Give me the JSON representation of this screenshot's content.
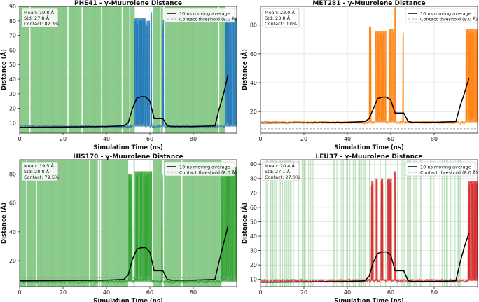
{
  "figure": {
    "common_xlabel": "Simulation Time (ns)",
    "common_ylabel": "Distance (Å)"
  },
  "chart_data": [
    {
      "type": "line",
      "title": "PHE41 - γ-Muurolene Distance",
      "xlabel": "Simulation Time (ns)",
      "ylabel": "Distance (Å)",
      "xlim": [
        0,
        100
      ],
      "ylim": [
        3,
        90
      ],
      "xticks": [
        0,
        20,
        40,
        60,
        80
      ],
      "yticks": [
        10,
        20,
        30,
        40,
        50,
        60,
        70,
        80,
        90
      ],
      "line_color": "#1f77b4",
      "shade_color": "#2ca02c",
      "contact_shading": "dense",
      "stats": [
        "Mean: 19.8 Å",
        "Std: 27.8 Å",
        "Contact: 82.3%"
      ],
      "legend": [
        "10 ns moving average",
        "Contact threshold (8.0 Å)"
      ],
      "legend_loc": "upper right",
      "threshold": 8.0,
      "baseline": 7.5,
      "spikes": [
        {
          "x0": 53,
          "x1": 58,
          "y": 82
        },
        {
          "x0": 58.5,
          "x1": 60,
          "y": 80
        },
        {
          "x0": 60.5,
          "x1": 61,
          "y": 86
        },
        {
          "x0": 66,
          "x1": 66.5,
          "y": 81
        },
        {
          "x0": 94.5,
          "x1": 100,
          "y": 82
        }
      ],
      "moving_average": {
        "x": [
          0,
          20,
          40,
          48,
          50,
          52,
          54,
          56,
          58,
          60,
          62,
          64,
          66,
          68,
          70,
          80,
          90,
          92,
          94,
          96
        ],
        "y": [
          7,
          7.2,
          7.5,
          8,
          10,
          20,
          27,
          28,
          28,
          25,
          13,
          13,
          13,
          8,
          7.5,
          7.5,
          8,
          20,
          30,
          43
        ]
      }
    },
    {
      "type": "line",
      "title": "MET281 - γ-Muurolene Distance",
      "xlabel": "Simulation Time (ns)",
      "ylabel": "Distance (Å)",
      "xlim": [
        0,
        100
      ],
      "ylim": [
        5,
        93
      ],
      "xticks": [
        0,
        20,
        40,
        60,
        80
      ],
      "yticks": [
        20,
        40,
        60,
        80
      ],
      "line_color": "#ff7f0e",
      "shade_color": "#2ca02c",
      "contact_shading": "none",
      "stats": [
        "Mean: 23.0 Å",
        "Std: 23.8 Å",
        "Contact: 0.0%"
      ],
      "legend": [
        "10 ns moving average",
        "Contact threshold (8.0 Å)"
      ],
      "legend_loc": "upper right",
      "threshold": 8.0,
      "baseline": 12.5,
      "spikes": [
        {
          "x0": 50,
          "x1": 51,
          "y": 79
        },
        {
          "x0": 53,
          "x1": 58,
          "y": 76
        },
        {
          "x0": 59,
          "x1": 61.5,
          "y": 77
        },
        {
          "x0": 61.8,
          "x1": 62.2,
          "y": 93
        },
        {
          "x0": 65.5,
          "x1": 66,
          "y": 75
        },
        {
          "x0": 94.5,
          "x1": 100,
          "y": 77
        }
      ],
      "moving_average": {
        "x": [
          0,
          20,
          40,
          48,
          50,
          52,
          54,
          56,
          58,
          60,
          62,
          64,
          66,
          68,
          70,
          80,
          90,
          92,
          94,
          96
        ],
        "y": [
          12,
          12.2,
          12.5,
          13,
          15,
          22,
          29,
          30,
          30,
          28,
          19,
          19,
          19,
          13,
          12.5,
          12.5,
          13,
          24,
          33,
          43
        ]
      }
    },
    {
      "type": "line",
      "title": "HIS170 - γ-Muurolene Distance",
      "xlabel": "Simulation Time (ns)",
      "ylabel": "Distance (Å)",
      "xlim": [
        0,
        100
      ],
      "ylim": [
        2,
        90
      ],
      "xticks": [
        0,
        20,
        40,
        60,
        80
      ],
      "yticks": [
        20,
        40,
        60,
        80
      ],
      "line_color": "#2ca02c",
      "shade_color": "#2ca02c",
      "contact_shading": "dense",
      "stats": [
        "Mean: 19.5 Å",
        "Std: 28.8 Å",
        "Contact: 79.5%"
      ],
      "legend": [
        "10 ns moving average",
        "Contact threshold (8.0 Å)"
      ],
      "legend_loc": "upper right",
      "threshold": 8.0,
      "baseline": 5.5,
      "spikes": [
        {
          "x0": 50,
          "x1": 52,
          "y": 80
        },
        {
          "x0": 53,
          "x1": 61,
          "y": 82
        },
        {
          "x0": 65.5,
          "x1": 66,
          "y": 80
        },
        {
          "x0": 93,
          "x1": 100,
          "y": 85
        }
      ],
      "moving_average": {
        "x": [
          0,
          20,
          40,
          48,
          50,
          52,
          54,
          56,
          58,
          60,
          62,
          64,
          66,
          68,
          70,
          80,
          90,
          92,
          94,
          96
        ],
        "y": [
          6,
          6.2,
          6.5,
          7,
          10,
          21,
          28,
          29,
          29,
          26,
          13,
          13,
          13,
          7,
          6.5,
          6.5,
          7,
          20,
          32,
          44
        ]
      }
    },
    {
      "type": "line",
      "title": "LEU37 - γ-Muurolene Distance",
      "xlabel": "Simulation Time (ns)",
      "ylabel": "Distance (Å)",
      "xlim": [
        0,
        100
      ],
      "ylim": [
        5,
        93
      ],
      "xticks": [
        0,
        20,
        40,
        60,
        80
      ],
      "yticks": [
        10,
        20,
        30,
        40,
        50,
        60,
        70,
        80,
        90
      ],
      "line_color": "#d62728",
      "shade_color": "#2ca02c",
      "contact_shading": "sparse",
      "stats": [
        "Mean: 20.4 Å",
        "Std: 27.1 Å",
        "Contact: 27.0%"
      ],
      "legend": [
        "10 ns moving average",
        "Contact threshold (8.0 Å)"
      ],
      "legend_loc": "upper right",
      "threshold": 8.0,
      "baseline": 9,
      "spikes": [
        {
          "x0": 51,
          "x1": 52,
          "y": 78
        },
        {
          "x0": 53,
          "x1": 54,
          "y": 80
        },
        {
          "x0": 55.5,
          "x1": 56.5,
          "y": 80
        },
        {
          "x0": 58.5,
          "x1": 60.5,
          "y": 80
        },
        {
          "x0": 61.5,
          "x1": 62.5,
          "y": 85
        },
        {
          "x0": 95.5,
          "x1": 100,
          "y": 78
        }
      ],
      "moving_average": {
        "x": [
          0,
          20,
          40,
          48,
          50,
          52,
          54,
          56,
          58,
          60,
          62,
          64,
          66,
          68,
          70,
          80,
          90,
          92,
          94,
          96
        ],
        "y": [
          8,
          8.2,
          8.5,
          9,
          12,
          22,
          28,
          29,
          29,
          27,
          16,
          16,
          16,
          9,
          8.5,
          8.5,
          9,
          22,
          33,
          42
        ]
      }
    }
  ]
}
